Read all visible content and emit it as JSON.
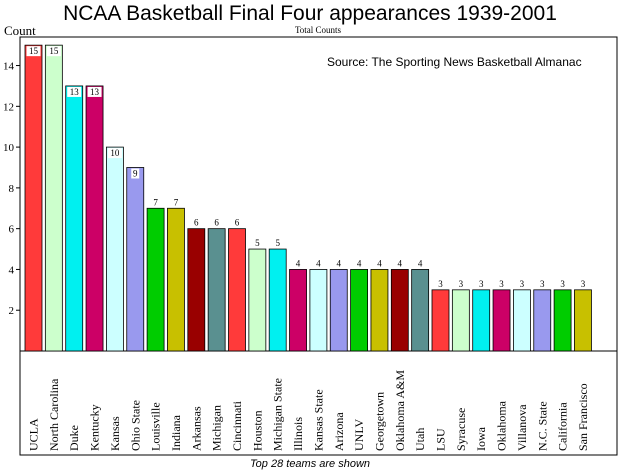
{
  "chart_data": {
    "type": "bar",
    "title": "NCAA Basketball Final Four appearances 1939-2001",
    "subtitle": "Total Counts",
    "ylabel": "Count",
    "annotation": "Source: The Sporting News Basketball Almanac",
    "footnote": "Top 28 teams are shown",
    "ylim": [
      0,
      15.4
    ],
    "yticks": [
      2,
      4,
      6,
      8,
      10,
      12,
      14
    ],
    "grid": false,
    "categories": [
      "UCLA",
      "North Carolina",
      "Duke",
      "Kentucky",
      "Kansas",
      "Ohio State",
      "Louisville",
      "Indiana",
      "Arkansas",
      "Michigan",
      "Cincinnati",
      "Houston",
      "Michigan State",
      "Illinois",
      "Kansas State",
      "Arizona",
      "UNLV",
      "Georgetown",
      "Oklahoma A&M",
      "Utah",
      "LSU",
      "Syracuse",
      "Iowa",
      "Oklahoma",
      "Villanova",
      "N.C. State",
      "California",
      "San Francisco"
    ],
    "values": [
      15,
      15,
      13,
      13,
      10,
      9,
      7,
      7,
      6,
      6,
      6,
      5,
      5,
      4,
      4,
      4,
      4,
      4,
      4,
      4,
      3,
      3,
      3,
      3,
      3,
      3,
      3,
      3
    ],
    "colors": [
      "#ff3a3a",
      "#ccffcc",
      "#00f0f0",
      "#cc0066",
      "#ccffff",
      "#9999ee",
      "#00cc00",
      "#c8c000",
      "#990000",
      "#5a9090",
      "#ff3a3a",
      "#ccffcc",
      "#00f0f0",
      "#cc0066",
      "#ccffff",
      "#9999ee",
      "#00cc00",
      "#c8c000",
      "#990000",
      "#5a9090",
      "#ff3a3a",
      "#ccffcc",
      "#00f0f0",
      "#cc0066",
      "#ccffff",
      "#9999ee",
      "#00cc00",
      "#c8c000"
    ]
  }
}
